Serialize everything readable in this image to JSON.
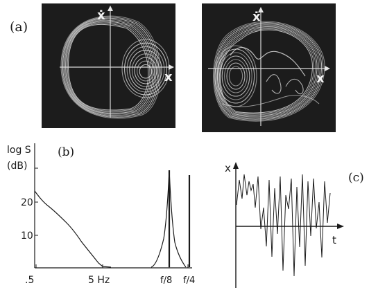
{
  "panel_a": {
    "label": "(a)",
    "left": {
      "x_axis_label": "x",
      "y_axis_label": "ẋ"
    },
    "right": {
      "x_axis_label": "x",
      "y_axis_label": "ẋ"
    }
  },
  "panel_b": {
    "label": "(b)",
    "ylabel_line1": "log S",
    "ylabel_line2": "(dB)",
    "xticks": [
      ".5",
      "5 Hz",
      "f/8",
      "f/4"
    ],
    "yticks": [
      "20",
      "10"
    ]
  },
  "panel_c": {
    "label": "(c)",
    "x_axis_label": "t",
    "y_axis_label": "x"
  },
  "colors": {
    "phase_background": "#1c1c1c",
    "phase_trace": "#e6e6e6",
    "ink": "#1a1a1a"
  },
  "chart_data": [
    {
      "type": "line",
      "panel": "b",
      "ylabel": "log S (dB)",
      "y_ticks": [
        10,
        20
      ],
      "x_ticks": [
        ".5",
        "5 Hz",
        "f/8",
        "f/4"
      ],
      "description_of_trace": "broadband spectrum decaying from ~22 dB at .5 Hz to ~0 near 5 Hz, with a sharp peak at f/8 and a line at f/4",
      "series": [
        {
          "values": [
            22,
            18,
            14,
            12,
            10,
            8,
            6,
            4,
            2,
            1,
            0
          ]
        }
      ],
      "peaks": [
        {
          "x": "f/8",
          "y": 29
        },
        {
          "x": "f/4",
          "y": 29
        }
      ]
    },
    {
      "type": "line",
      "panel": "c",
      "ylabel": "x",
      "xlabel": "t",
      "series": [
        {
          "values": [
            0.3,
            0.9,
            0.2,
            0.95,
            0.5,
            0.8,
            0.6,
            0.7,
            -0.3,
            0.9,
            -0.6,
            0.85,
            -0.8,
            0.9,
            -0.9,
            0.8,
            0.2,
            0.95,
            -0.7,
            0.9,
            0.1
          ]
        }
      ]
    }
  ]
}
